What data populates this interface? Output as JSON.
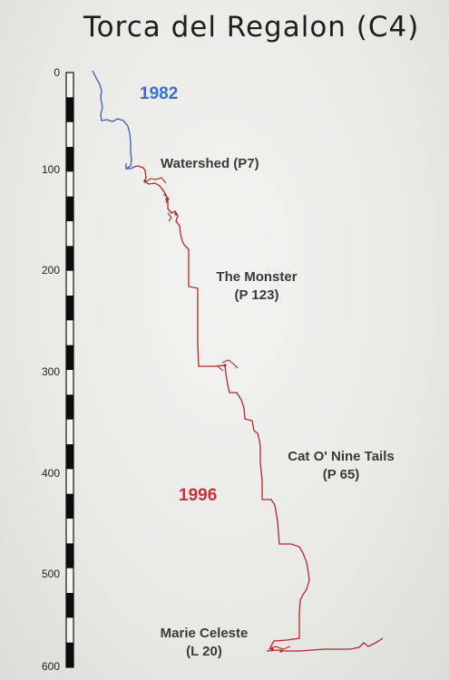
{
  "title": "Torca del Regalon (C4)",
  "scale": {
    "ticks": [
      "0",
      "100",
      "200",
      "300",
      "400",
      "500",
      "600"
    ]
  },
  "eras": {
    "early": "1982",
    "late": "1996"
  },
  "labels": {
    "watershed": "Watershed (P7)",
    "monster_name": "The Monster",
    "monster_pitch": "(P 123)",
    "cat_name": "Cat O' Nine Tails",
    "cat_pitch": "(P 65)",
    "marie_name": "Marie Celeste",
    "marie_pitch": "(L 20)"
  },
  "colors": {
    "early_passage": "#3a5bb0",
    "late_passage": "#b0282c",
    "early_text": "#3a6fd0",
    "late_text": "#c8323a"
  }
}
